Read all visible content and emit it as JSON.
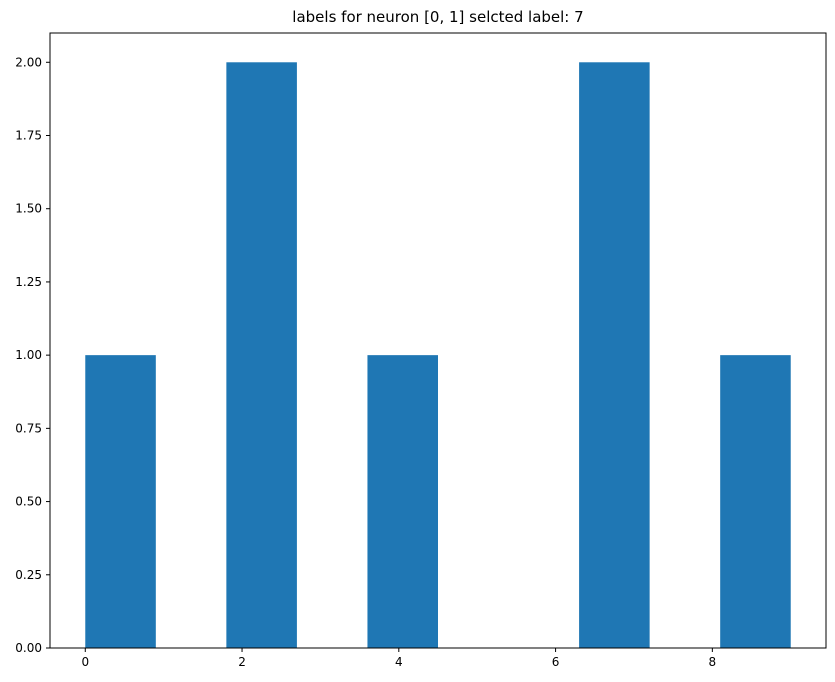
{
  "chart_data": {
    "type": "bar",
    "title": "labels for neuron [0, 1] selcted label: 7",
    "xlabel": "",
    "ylabel": "",
    "bins": [
      {
        "start": 0.0,
        "end": 0.9,
        "count": 1
      },
      {
        "start": 0.9,
        "end": 1.8,
        "count": 0
      },
      {
        "start": 1.8,
        "end": 2.7,
        "count": 2
      },
      {
        "start": 2.7,
        "end": 3.6,
        "count": 0
      },
      {
        "start": 3.6,
        "end": 4.5,
        "count": 1
      },
      {
        "start": 4.5,
        "end": 5.4,
        "count": 0
      },
      {
        "start": 5.4,
        "end": 6.3,
        "count": 0
      },
      {
        "start": 6.3,
        "end": 7.2,
        "count": 2
      },
      {
        "start": 7.2,
        "end": 8.1,
        "count": 0
      },
      {
        "start": 8.1,
        "end": 9.0,
        "count": 1
      }
    ],
    "xlim": [
      -0.45,
      9.45
    ],
    "ylim": [
      0,
      2.1
    ],
    "x_ticks": [
      0,
      2,
      4,
      6,
      8
    ],
    "x_tick_labels": [
      "0",
      "2",
      "4",
      "6",
      "8"
    ],
    "y_ticks": [
      0,
      0.25,
      0.5,
      0.75,
      1.0,
      1.25,
      1.5,
      1.75,
      2.0
    ],
    "y_tick_labels": [
      "0.00",
      "0.25",
      "0.50",
      "0.75",
      "1.00",
      "1.25",
      "1.50",
      "1.75",
      "2.00"
    ],
    "bar_color": "#1f77b4",
    "grid": false,
    "legend": "none"
  }
}
